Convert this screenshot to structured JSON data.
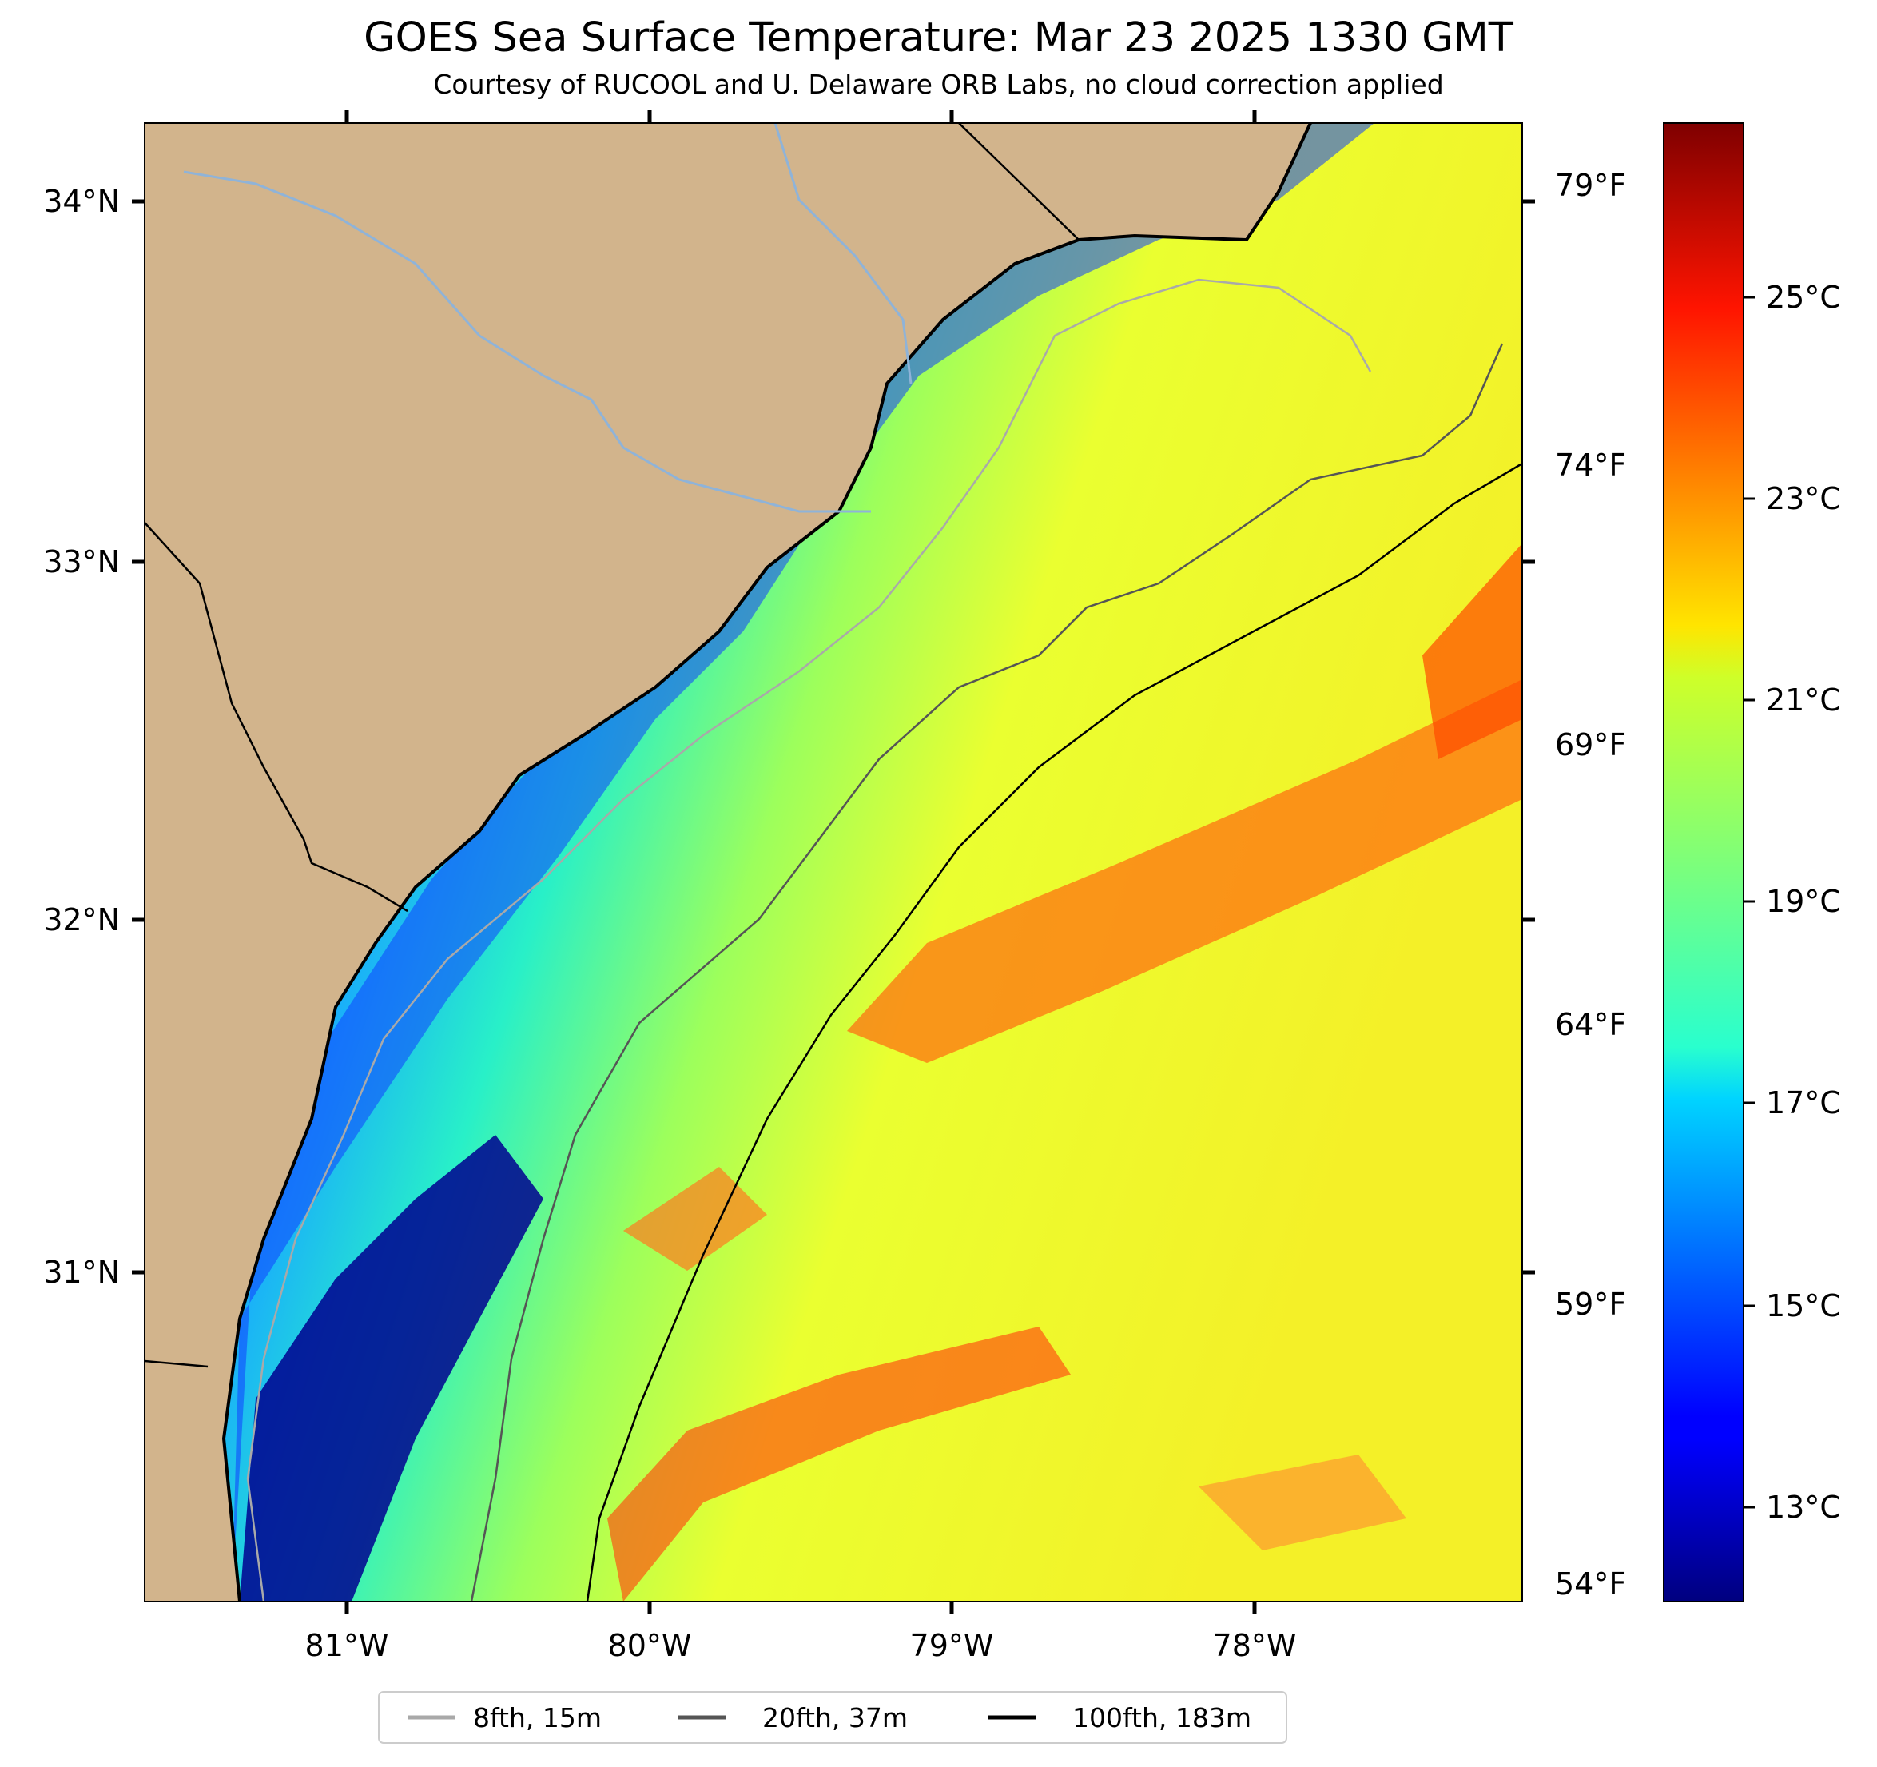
{
  "title": "GOES Sea Surface Temperature: Mar 23 2025 1330 GMT",
  "subtitle": "Courtesy of RUCOOL and U. Delaware ORB Labs, no cloud correction applied",
  "map": {
    "lon_labels": [
      "81°W",
      "80°W",
      "79°W",
      "78°W"
    ],
    "lat_labels": [
      "34°N",
      "33°N",
      "32°N",
      "31°N"
    ],
    "extent": {
      "lon": [
        -81.67,
        -77.12
      ],
      "lat": [
        30.1,
        34.22
      ]
    },
    "land_color": "#d2b48c",
    "fahrenheit_labels": [
      "79°F",
      "74°F",
      "69°F",
      "64°F",
      "59°F",
      "54°F"
    ]
  },
  "colorbar": {
    "celsius_labels": [
      "25°C",
      "23°C",
      "21°C",
      "19°C",
      "17°C",
      "15°C",
      "13°C"
    ],
    "range_c": [
      12.0,
      26.8
    ],
    "colormap": "jet"
  },
  "legend": {
    "items": [
      {
        "label": "8fth, 15m",
        "color": "#a9a9a9"
      },
      {
        "label": "20fth, 37m",
        "color": "#555555"
      },
      {
        "label": "100fth, 183m",
        "color": "#000000"
      }
    ]
  }
}
